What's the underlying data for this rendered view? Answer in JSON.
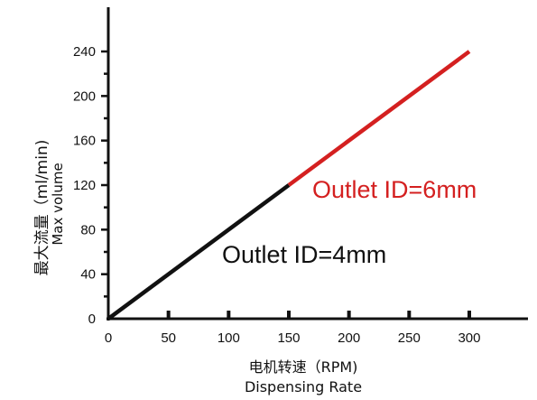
{
  "chart_data": {
    "type": "line",
    "title": "",
    "xlabel": [
      "电机转速（RPM)",
      "Dispensing Rate"
    ],
    "ylabel": [
      "最大流量（ml/min)",
      "Max volume"
    ],
    "xlim": [
      0,
      340
    ],
    "ylim": [
      0,
      250
    ],
    "xticks": [
      0,
      50,
      100,
      150,
      200,
      250,
      300
    ],
    "yticks": [
      0,
      40,
      80,
      120,
      160,
      200,
      240
    ],
    "grid": false,
    "series": [
      {
        "name": "Outlet ID=4mm",
        "color": "#111111",
        "x": [
          0,
          150
        ],
        "y": [
          0,
          120
        ]
      },
      {
        "name": "Outlet ID=6mm",
        "color": "#d42020",
        "x": [
          150,
          300
        ],
        "y": [
          120,
          240
        ]
      }
    ],
    "annotations": [
      {
        "text": "Outlet ID=6mm",
        "color": "#d42020",
        "series": 1
      },
      {
        "text": "Outlet ID=4mm",
        "color": "#111111",
        "series": 0
      }
    ]
  }
}
